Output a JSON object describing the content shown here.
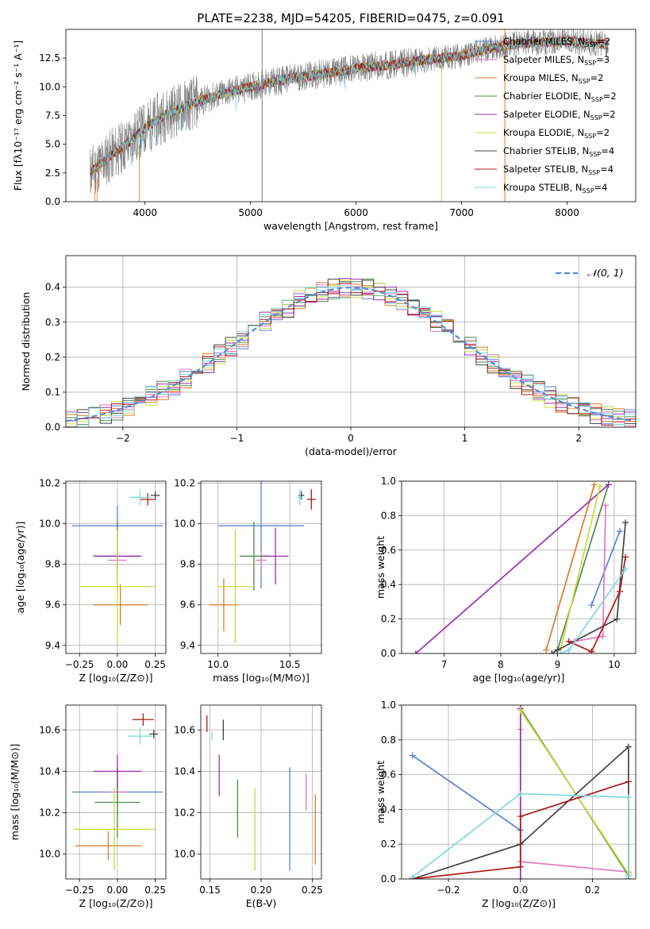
{
  "chart_data": [
    {
      "type": "line",
      "title": "PLATE=2238, MJD=54205, FIBERID=0475, z=0.091",
      "xlabel": "wavelength [Angstrom, rest frame]",
      "ylabel": "Flux [fλ10⁻¹⁷ erg cm⁻² s⁻¹ A⁻¹]",
      "xlim": [
        3250,
        8650
      ],
      "ylim": [
        0,
        15
      ],
      "xticks": [
        4000,
        5000,
        6000,
        7000,
        8000
      ],
      "yticks": [
        0.0,
        2.5,
        5.0,
        7.5,
        10.0,
        12.5
      ],
      "legend_position": "upper-right",
      "legend": [
        {
          "label": "Chabrier MILES, N",
          "sub": "SSP",
          "suffix": "=2",
          "color": "#5b84d4"
        },
        {
          "label": "Salpeter MILES, N",
          "sub": "SSP",
          "suffix": "=3",
          "color": "#e377c2"
        },
        {
          "label": "Kroupa MILES, N",
          "sub": "SSP",
          "suffix": "=2",
          "color": "#e07b28"
        },
        {
          "label": "Chabrier ELODIE, N",
          "sub": "SSP",
          "suffix": "=2",
          "color": "#4f8a4f"
        },
        {
          "label": "Salpeter ELODIE, N",
          "sub": "SSP",
          "suffix": "=2",
          "color": "#9b30b4"
        },
        {
          "label": "Kroupa ELODIE, N",
          "sub": "SSP",
          "suffix": "=2",
          "color": "#c8dc3c"
        },
        {
          "label": "Chabrier STELIB, N",
          "sub": "SSP",
          "suffix": "=4",
          "color": "#444444"
        },
        {
          "label": "Salpeter STELIB, N",
          "sub": "SSP",
          "suffix": "=4",
          "color": "#b01818"
        },
        {
          "label": "Kroupa STELIB, N",
          "sub": "SSP",
          "suffix": "=4",
          "color": "#7fd8e0"
        }
      ],
      "spectrum_color": "#808080",
      "spectrum_range": [
        3480,
        8390
      ],
      "continuum": [
        [
          3480,
          2.6
        ],
        [
          3600,
          3.4
        ],
        [
          3700,
          4.2
        ],
        [
          3800,
          4.8
        ],
        [
          3900,
          5.6
        ],
        [
          4000,
          6.4
        ],
        [
          4200,
          7.6
        ],
        [
          4400,
          8.4
        ],
        [
          4600,
          9.0
        ],
        [
          4800,
          9.6
        ],
        [
          5000,
          10.0
        ],
        [
          5200,
          10.4
        ],
        [
          5400,
          10.8
        ],
        [
          5600,
          11.0
        ],
        [
          5800,
          11.3
        ],
        [
          6000,
          11.6
        ],
        [
          6200,
          11.8
        ],
        [
          6400,
          12.0
        ],
        [
          6600,
          12.3
        ],
        [
          6800,
          12.5
        ],
        [
          7000,
          12.7
        ],
        [
          7200,
          13.2
        ],
        [
          7400,
          13.6
        ],
        [
          7600,
          13.8
        ],
        [
          7800,
          13.9
        ],
        [
          8000,
          14.0
        ],
        [
          8200,
          13.8
        ],
        [
          8390,
          13.7
        ]
      ],
      "features": [
        {
          "x": 5110,
          "y0": 0,
          "y1": 15,
          "color": "#808080"
        },
        {
          "x": 6810,
          "y0": 0,
          "y1": 12.0,
          "color": "#c8dc3c"
        },
        {
          "x": 7410,
          "y0": 0,
          "y1": 15,
          "color": "#e07b28"
        }
      ]
    },
    {
      "type": "step",
      "xlabel": "(data-model)/error",
      "ylabel": "Normed distribution",
      "xlim": [
        -2.5,
        2.5
      ],
      "ylim": [
        0,
        0.49
      ],
      "xticks": [
        -2,
        -1,
        0,
        1,
        2
      ],
      "yticks": [
        0.0,
        0.1,
        0.2,
        0.3,
        0.4
      ],
      "legend_position": "upper-right",
      "legend_label": "𝒩(0, 1)",
      "gauss_color": "#5b8bd4",
      "bin_width": 0.1,
      "bins_start": -2.5,
      "series": [
        {
          "color": "#5b84d4",
          "jitter_seed": 1
        },
        {
          "color": "#e377c2",
          "jitter_seed": 2
        },
        {
          "color": "#e07b28",
          "jitter_seed": 3
        },
        {
          "color": "#4f8a4f",
          "jitter_seed": 4
        },
        {
          "color": "#9b30b4",
          "jitter_seed": 5
        },
        {
          "color": "#c8dc3c",
          "jitter_seed": 6
        },
        {
          "color": "#444444",
          "jitter_seed": 7
        },
        {
          "color": "#b01818",
          "jitter_seed": 8
        },
        {
          "color": "#7fd8e0",
          "jitter_seed": 9
        }
      ]
    },
    {
      "type": "errorbar",
      "xlabel": "Z [log₁₀(Z/Z⊙)]",
      "ylabel": "age  [log₁₀(age/yr)]",
      "xlim": [
        -0.34,
        0.32
      ],
      "ylim": [
        9.36,
        10.21
      ],
      "xticks": [
        -0.25,
        0.0,
        0.25
      ],
      "yticks": [
        9.4,
        9.6,
        9.8,
        10.0,
        10.2
      ],
      "points": [
        {
          "x": 0.0,
          "y": 9.99,
          "ex": 0.3,
          "ey": 0.1,
          "color": "#5b84d4"
        },
        {
          "x": 0.0,
          "y": 9.82,
          "ex": 0.06,
          "ey": 0.05,
          "color": "#e377c2"
        },
        {
          "x": 0.02,
          "y": 9.6,
          "ex": 0.18,
          "ey": 0.1,
          "color": "#e07b28"
        },
        {
          "x": 0.0,
          "y": 9.84,
          "ex": 0.15,
          "ey": 0.18,
          "color": "#4f8a4f"
        },
        {
          "x": 0.0,
          "y": 9.84,
          "ex": 0.16,
          "ey": 0.03,
          "color": "#9b30b4"
        },
        {
          "x": 0.0,
          "y": 9.69,
          "ex": 0.25,
          "ey": 0.28,
          "color": "#c8dc3c"
        },
        {
          "x": 0.25,
          "y": 10.14,
          "ex": 0.03,
          "ey": 0.02,
          "color": "#444444"
        },
        {
          "x": 0.2,
          "y": 10.12,
          "ex": 0.05,
          "ey": 0.03,
          "color": "#b01818"
        },
        {
          "x": 0.15,
          "y": 10.13,
          "ex": 0.07,
          "ey": 0.04,
          "color": "#7fd8e0"
        }
      ]
    },
    {
      "type": "errorbar",
      "xlabel": "mass [log₁₀(M/M⊙)]",
      "ylabel": "",
      "xlim": [
        9.88,
        10.72
      ],
      "ylim": [
        9.36,
        10.21
      ],
      "xticks": [
        10.0,
        10.5
      ],
      "yticks": [
        9.4,
        9.6,
        9.8,
        10.0,
        10.2
      ],
      "points": [
        {
          "x": 10.3,
          "y": 9.99,
          "ex": 0.3,
          "ey": 0.31,
          "color": "#5b84d4"
        },
        {
          "x": 10.3,
          "y": 9.82,
          "ex": 0.04,
          "ey": 0.05,
          "color": "#e377c2"
        },
        {
          "x": 10.04,
          "y": 9.6,
          "ex": 0.1,
          "ey": 0.13,
          "color": "#e07b28"
        },
        {
          "x": 10.25,
          "y": 9.84,
          "ex": 0.1,
          "ey": 0.17,
          "color": "#4f8a4f"
        },
        {
          "x": 10.4,
          "y": 9.84,
          "ex": 0.09,
          "ey": 0.14,
          "color": "#9b30b4"
        },
        {
          "x": 10.12,
          "y": 9.69,
          "ex": 0.12,
          "ey": 0.28,
          "color": "#c8dc3c"
        },
        {
          "x": 10.58,
          "y": 10.14,
          "ex": 0.02,
          "ey": 0.02,
          "color": "#444444"
        },
        {
          "x": 10.65,
          "y": 10.12,
          "ex": 0.03,
          "ey": 0.05,
          "color": "#b01818"
        },
        {
          "x": 10.57,
          "y": 10.13,
          "ex": 0.02,
          "ey": 0.04,
          "color": "#7fd8e0"
        }
      ]
    },
    {
      "type": "line",
      "xlabel": "age  [log₁₀(age/yr)]",
      "ylabel": "mass weight",
      "xlim": [
        6.25,
        10.38
      ],
      "ylim": [
        0,
        1.0
      ],
      "xticks": [
        7,
        8,
        9,
        10
      ],
      "yticks": [
        0.0,
        0.2,
        0.4,
        0.6,
        0.8,
        1.0
      ],
      "series": [
        {
          "color": "#5b84d4",
          "x": [
            9.6,
            10.1
          ],
          "y": [
            0.28,
            0.71
          ]
        },
        {
          "color": "#e377c2",
          "x": [
            9.3,
            9.8,
            9.85
          ],
          "y": [
            0.07,
            0.1,
            0.86
          ]
        },
        {
          "color": "#e07b28",
          "x": [
            8.8,
            9.65
          ],
          "y": [
            0.02,
            0.98
          ]
        },
        {
          "color": "#4f8a4f",
          "x": [
            9.0,
            9.9
          ],
          "y": [
            0.02,
            0.98
          ]
        },
        {
          "color": "#9b30b4",
          "x": [
            6.5,
            9.9
          ],
          "y": [
            0.0,
            0.98
          ]
        },
        {
          "color": "#c8dc3c",
          "x": [
            9.05,
            9.75
          ],
          "y": [
            0.02,
            0.97
          ]
        },
        {
          "color": "#444444",
          "x": [
            8.9,
            9.0,
            10.05,
            10.2
          ],
          "y": [
            0.0,
            0.02,
            0.2,
            0.76
          ]
        },
        {
          "color": "#b01818",
          "x": [
            9.2,
            9.6,
            10.1,
            10.2
          ],
          "y": [
            0.07,
            0.01,
            0.36,
            0.56
          ]
        },
        {
          "color": "#7fd8e0",
          "x": [
            9.05,
            9.2,
            10.2
          ],
          "y": [
            0.0,
            0.02,
            0.49
          ]
        }
      ]
    },
    {
      "type": "errorbar",
      "xlabel": "Z [log₁₀(Z/Z⊙)]",
      "ylabel": "mass [log₁₀(M/M⊙)]",
      "xlim": [
        -0.34,
        0.32
      ],
      "ylim": [
        9.88,
        10.72
      ],
      "xticks": [
        -0.25,
        0.0,
        0.25
      ],
      "yticks": [
        10.0,
        10.2,
        10.4,
        10.6
      ],
      "points": [
        {
          "x": 0.0,
          "y": 10.3,
          "ex": 0.3,
          "ey": 0.12,
          "color": "#5b84d4"
        },
        {
          "x": 0.0,
          "y": 10.3,
          "ex": 0.06,
          "ey": 0.05,
          "color": "#e377c2"
        },
        {
          "x": -0.06,
          "y": 10.04,
          "ex": 0.22,
          "ey": 0.07,
          "color": "#e07b28"
        },
        {
          "x": 0.0,
          "y": 10.25,
          "ex": 0.15,
          "ey": 0.17,
          "color": "#4f8a4f"
        },
        {
          "x": 0.0,
          "y": 10.4,
          "ex": 0.16,
          "ey": 0.08,
          "color": "#9b30b4"
        },
        {
          "x": -0.02,
          "y": 10.12,
          "ex": 0.27,
          "ey": 0.2,
          "color": "#c8dc3c"
        },
        {
          "x": 0.24,
          "y": 10.58,
          "ex": 0.03,
          "ey": 0.02,
          "color": "#444444"
        },
        {
          "x": 0.17,
          "y": 10.65,
          "ex": 0.07,
          "ey": 0.03,
          "color": "#b01818"
        },
        {
          "x": 0.15,
          "y": 10.57,
          "ex": 0.08,
          "ey": 0.04,
          "color": "#7fd8e0"
        }
      ]
    },
    {
      "type": "errorbar-vertical",
      "xlabel": "E(B-V)",
      "ylabel": "",
      "xlim": [
        0.141,
        0.259
      ],
      "ylim": [
        9.88,
        10.72
      ],
      "xticks": [
        0.15,
        0.2,
        0.25
      ],
      "yticks": [
        10.0,
        10.2,
        10.4,
        10.6
      ],
      "points": [
        {
          "x": 0.228,
          "y": 10.17,
          "ey": 0.25,
          "color": "#5b84d4"
        },
        {
          "x": 0.244,
          "y": 10.3,
          "ey": 0.09,
          "color": "#e377c2"
        },
        {
          "x": 0.253,
          "y": 10.12,
          "ey": 0.17,
          "color": "#e07b28"
        },
        {
          "x": 0.177,
          "y": 10.22,
          "ey": 0.14,
          "color": "#4f8a4f"
        },
        {
          "x": 0.159,
          "y": 10.38,
          "ey": 0.1,
          "color": "#9b30b4"
        },
        {
          "x": 0.194,
          "y": 10.12,
          "ey": 0.2,
          "color": "#c8dc3c"
        },
        {
          "x": 0.163,
          "y": 10.6,
          "ey": 0.05,
          "color": "#444444"
        },
        {
          "x": 0.147,
          "y": 10.63,
          "ey": 0.04,
          "color": "#b01818"
        },
        {
          "x": 0.152,
          "y": 10.57,
          "ey": 0.02,
          "color": "#7fd8e0"
        }
      ]
    },
    {
      "type": "line",
      "xlabel": "Z [log₁₀(Z/Z⊙)]",
      "ylabel": "mass weight",
      "xlim": [
        -0.33,
        0.32
      ],
      "ylim": [
        0,
        1.0
      ],
      "xticks": [
        -0.2,
        0.0,
        0.2
      ],
      "yticks": [
        0.0,
        0.2,
        0.4,
        0.6,
        0.8,
        1.0
      ],
      "series": [
        {
          "color": "#5b84d4",
          "x": [
            -0.3,
            0.0
          ],
          "y": [
            0.71,
            0.28
          ]
        },
        {
          "color": "#e377c2",
          "x": [
            0.3,
            0.0,
            0.0
          ],
          "y": [
            0.04,
            0.1,
            0.86
          ]
        },
        {
          "color": "#e07b28",
          "x": [
            0.3,
            0.0
          ],
          "y": [
            0.02,
            0.98
          ]
        },
        {
          "color": "#4f8a4f",
          "x": [
            0.3,
            0.0
          ],
          "y": [
            0.02,
            0.98
          ]
        },
        {
          "color": "#9b30b4",
          "x": [
            0.0,
            0.0
          ],
          "y": [
            0.0,
            0.98
          ]
        },
        {
          "color": "#c8dc3c",
          "x": [
            0.3,
            0.0
          ],
          "y": [
            0.03,
            0.97
          ]
        },
        {
          "color": "#444444",
          "x": [
            -0.3,
            0.0,
            0.3,
            0.3
          ],
          "y": [
            0.0,
            0.2,
            0.76,
            0.0
          ]
        },
        {
          "color": "#b01818",
          "x": [
            -0.3,
            0.0,
            0.0,
            0.3
          ],
          "y": [
            0.0,
            0.07,
            0.36,
            0.56
          ]
        },
        {
          "color": "#7fd8e0",
          "x": [
            -0.3,
            0.0,
            0.3,
            0.3
          ],
          "y": [
            0.01,
            0.49,
            0.47,
            0.02
          ]
        }
      ]
    }
  ]
}
